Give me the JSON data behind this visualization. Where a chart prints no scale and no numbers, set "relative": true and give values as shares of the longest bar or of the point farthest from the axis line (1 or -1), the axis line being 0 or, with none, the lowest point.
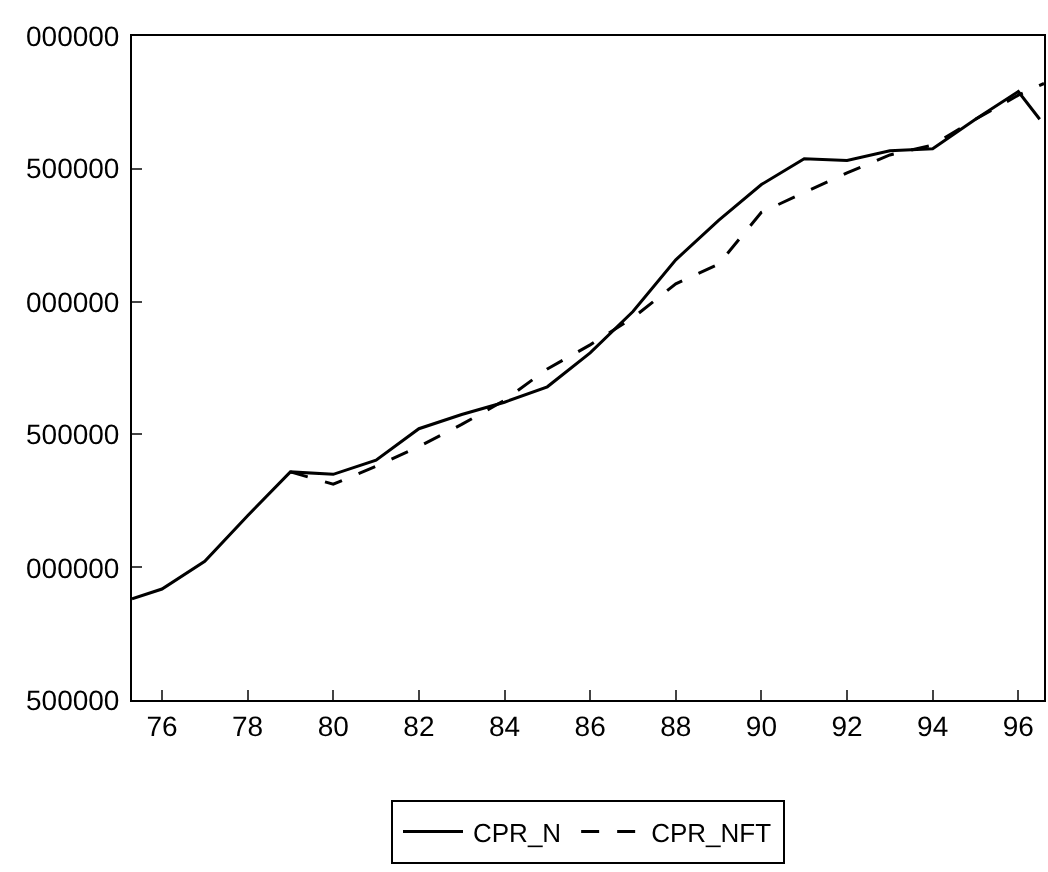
{
  "chart_data": {
    "type": "line",
    "relative": true,
    "xlim": [
      75.3,
      96.6
    ],
    "xticks": [
      76,
      78,
      80,
      82,
      84,
      86,
      88,
      90,
      92,
      94,
      96
    ],
    "annotations": [
      "000000",
      "500000",
      "000000",
      "500000",
      "000000",
      "500000"
    ],
    "legend": "bottom",
    "marker": "none",
    "series": [
      {
        "name": "CPR_N",
        "color": "#000000",
        "line_style": "solid",
        "x": [
          75.3,
          76,
          77,
          78,
          79,
          80,
          81,
          82,
          83,
          84,
          85,
          86,
          87,
          88,
          89,
          90,
          91,
          92,
          93,
          94,
          95,
          96,
          96.5
        ],
        "values": [
          0.164,
          0.18,
          0.225,
          0.299,
          0.37,
          0.366,
          0.389,
          0.44,
          0.463,
          0.483,
          0.508,
          0.563,
          0.63,
          0.714,
          0.778,
          0.836,
          0.878,
          0.875,
          0.891,
          0.894,
          0.942,
          0.987,
          0.942
        ]
      },
      {
        "name": "CPR_NFT",
        "color": "#000000",
        "line_style": "dashed",
        "x": [
          79,
          80,
          81,
          82,
          83,
          84,
          85,
          86,
          87,
          88,
          89,
          90,
          91,
          92,
          93,
          94,
          95,
          96,
          96.6
        ],
        "values": [
          0.37,
          0.35,
          0.379,
          0.411,
          0.447,
          0.486,
          0.537,
          0.576,
          0.62,
          0.675,
          0.707,
          0.791,
          0.823,
          0.855,
          0.884,
          0.9,
          0.942,
          0.981,
          1
        ]
      }
    ]
  }
}
